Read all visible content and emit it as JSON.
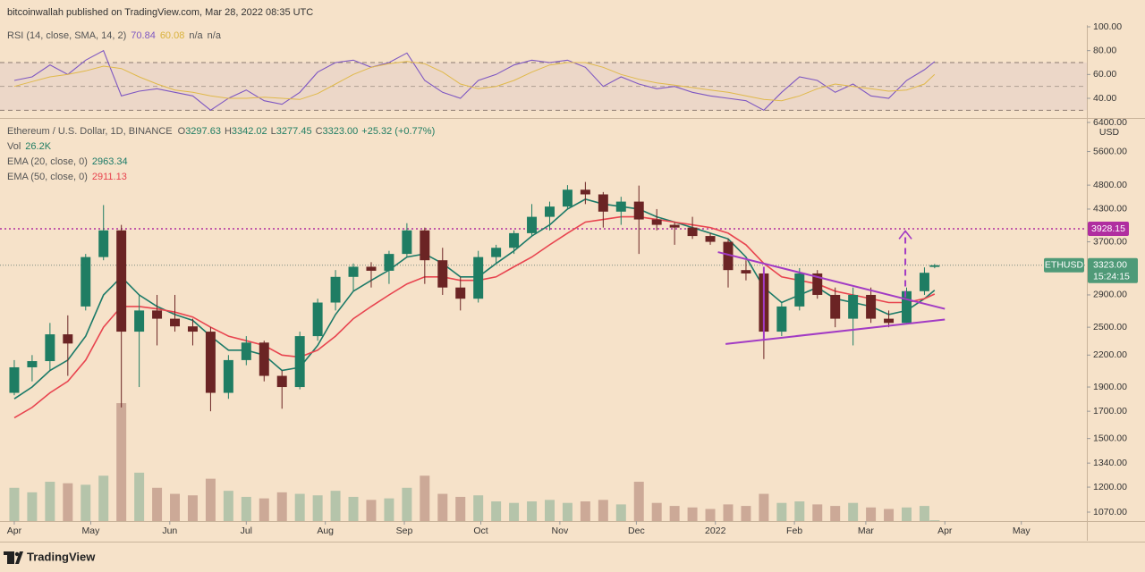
{
  "header": {
    "text": "bitcoinwallah published on TradingView.com, Mar 28, 2022 08:35 UTC"
  },
  "footer": {
    "logo_text": "TradingView"
  },
  "chart_data": [
    {
      "type": "line",
      "title": "RSI (14, close, SMA, 14, 2)",
      "legend_values": [
        {
          "text": "70.84",
          "color": "#7e57c2"
        },
        {
          "text": "60.08",
          "color": "#d9b23c"
        },
        {
          "text": "n/a",
          "color": "#555555"
        },
        {
          "text": "n/a",
          "color": "#555555"
        }
      ],
      "x": [
        0,
        7,
        14,
        21,
        28,
        35,
        42,
        49,
        56,
        63,
        70,
        77,
        84,
        91,
        98,
        105,
        112,
        119,
        126,
        133,
        140,
        147,
        154,
        161,
        168,
        175,
        182,
        189,
        196,
        203,
        210,
        217,
        224,
        231,
        238,
        245,
        252,
        259,
        266,
        273,
        280,
        287,
        294,
        301,
        308,
        315,
        322,
        329,
        336,
        343,
        350,
        357,
        361
      ],
      "series": [
        {
          "color": "#7e57c2",
          "values": [
            55,
            58,
            68,
            60,
            72,
            80,
            42,
            46,
            48,
            45,
            42,
            30,
            40,
            47,
            38,
            35,
            45,
            62,
            70,
            72,
            66,
            70,
            78,
            55,
            45,
            40,
            55,
            60,
            68,
            72,
            70,
            72,
            66,
            50,
            58,
            52,
            48,
            50,
            45,
            42,
            40,
            38,
            30,
            45,
            58,
            55,
            45,
            52,
            42,
            40,
            55,
            64,
            70.84
          ]
        },
        {
          "color": "#e0b94a",
          "values": [
            50,
            54,
            58,
            60,
            63,
            67,
            65,
            58,
            52,
            47,
            45,
            42,
            40,
            40,
            41,
            40,
            39,
            44,
            52,
            60,
            66,
            69,
            71,
            69,
            62,
            52,
            48,
            50,
            55,
            62,
            68,
            70,
            70,
            66,
            60,
            56,
            53,
            51,
            49,
            47,
            45,
            42,
            39,
            38,
            42,
            48,
            52,
            50,
            48,
            46,
            47,
            52,
            60.08
          ]
        }
      ],
      "band": [
        30,
        70
      ],
      "midline": 50,
      "band_color": "#7e57c2",
      "xlim": [
        -5.6,
        420.7
      ],
      "ylim": [
        23.5,
        101.5
      ],
      "yticks": [
        {
          "value": 100,
          "label": "100.00"
        },
        {
          "value": 80,
          "label": "80.00"
        },
        {
          "value": 60,
          "label": "60.00"
        },
        {
          "value": 40,
          "label": "40.00"
        }
      ]
    },
    {
      "type": "candlestick",
      "title": "Ethereum / U.S. Dollar, 1D, BINANCE",
      "ohlc_legend": [
        {
          "key": "O",
          "value": "3297.63"
        },
        {
          "key": "H",
          "value": "3342.02"
        },
        {
          "key": "L",
          "value": "3277.45"
        },
        {
          "key": "C",
          "value": "3323.00"
        }
      ],
      "change": "+25.32 (+0.77%)",
      "up_color": "#1f7d63",
      "down_color": "#6b2424",
      "x": [
        0,
        7,
        14,
        21,
        28,
        35,
        42,
        49,
        56,
        63,
        70,
        77,
        84,
        91,
        98,
        105,
        112,
        119,
        126,
        133,
        140,
        147,
        154,
        161,
        168,
        175,
        182,
        189,
        196,
        203,
        210,
        217,
        224,
        231,
        238,
        245,
        252,
        259,
        266,
        273,
        280,
        287,
        294,
        301,
        308,
        315,
        322,
        329,
        336,
        343,
        350,
        357,
        361
      ],
      "open": [
        1850,
        2080,
        2140,
        2420,
        2750,
        3450,
        3900,
        2450,
        2700,
        2600,
        2510,
        2450,
        1850,
        2150,
        2330,
        2000,
        1900,
        2400,
        2800,
        3150,
        3300,
        3240,
        3500,
        3900,
        3400,
        3000,
        2850,
        3450,
        3600,
        3850,
        4150,
        4350,
        4700,
        4600,
        4250,
        4450,
        4100,
        4000,
        3950,
        3800,
        3700,
        3250,
        3200,
        2450,
        2750,
        3200,
        2900,
        2600,
        2900,
        2600,
        2550,
        2950,
        3297.63
      ],
      "high": [
        2150,
        2200,
        2550,
        2640,
        3500,
        4380,
        4000,
        2900,
        2900,
        2900,
        2600,
        2500,
        2200,
        2400,
        2350,
        2050,
        2450,
        2850,
        3250,
        3350,
        3370,
        3550,
        4030,
        3950,
        3600,
        3150,
        3550,
        3650,
        3900,
        4400,
        4450,
        4800,
        4870,
        4650,
        4550,
        4790,
        4300,
        4050,
        4150,
        3850,
        3750,
        3400,
        3250,
        2800,
        3280,
        3250,
        3000,
        3000,
        3000,
        2700,
        3000,
        3290,
        3342.02
      ],
      "low": [
        1830,
        1950,
        2050,
        2000,
        2700,
        3400,
        1730,
        1900,
        2300,
        2450,
        2300,
        1700,
        1800,
        2100,
        1950,
        1720,
        1880,
        2350,
        2700,
        2950,
        3000,
        3050,
        3450,
        3050,
        2900,
        2700,
        2800,
        3350,
        3500,
        3800,
        3900,
        4300,
        4400,
        3950,
        4000,
        3500,
        3900,
        3650,
        3750,
        3650,
        3000,
        3100,
        2160,
        2400,
        2700,
        2850,
        2500,
        2300,
        2550,
        2500,
        2550,
        2900,
        3277.45
      ],
      "close": [
        2080,
        2140,
        2420,
        2320,
        3450,
        3900,
        2450,
        2700,
        2600,
        2510,
        2450,
        1850,
        2150,
        2330,
        2000,
        1900,
        2400,
        2800,
        3150,
        3300,
        3240,
        3500,
        3900,
        3400,
        3000,
        2850,
        3450,
        3600,
        3850,
        4150,
        4350,
        4700,
        4600,
        4250,
        4450,
        4100,
        4000,
        3950,
        3800,
        3700,
        3250,
        3200,
        2450,
        2750,
        3200,
        2900,
        2600,
        2900,
        2600,
        2550,
        2950,
        3210,
        3323
      ],
      "volume": {
        "name": "Vol",
        "last": "26.2K",
        "color": "#1f7d63",
        "values": [
          1100000,
          950000,
          1300000,
          1250000,
          1200000,
          1500000,
          3900000,
          1600000,
          1100000,
          900000,
          850000,
          1400000,
          1000000,
          800000,
          750000,
          950000,
          900000,
          850000,
          1000000,
          800000,
          700000,
          750000,
          1100000,
          1500000,
          900000,
          800000,
          850000,
          650000,
          600000,
          650000,
          700000,
          600000,
          650000,
          700000,
          550000,
          1300000,
          600000,
          500000,
          450000,
          400000,
          550000,
          500000,
          900000,
          600000,
          650000,
          550000,
          500000,
          600000,
          450000,
          400000,
          450000,
          500000,
          26200
        ],
        "ylim": [
          0,
          13300000
        ]
      },
      "series": [
        {
          "name": "EMA (20, close, 0)",
          "last": "2963.34",
          "color": "#1b7a68",
          "values": [
            1800,
            1900,
            2050,
            2150,
            2400,
            2900,
            3150,
            2900,
            2750,
            2650,
            2580,
            2400,
            2250,
            2250,
            2200,
            2050,
            2080,
            2300,
            2650,
            2950,
            3100,
            3250,
            3450,
            3500,
            3350,
            3150,
            3150,
            3350,
            3550,
            3800,
            4000,
            4300,
            4500,
            4400,
            4350,
            4300,
            4150,
            4050,
            3950,
            3850,
            3750,
            3450,
            3000,
            2800,
            2900,
            3000,
            2850,
            2800,
            2750,
            2650,
            2700,
            2850,
            2963.34
          ]
        },
        {
          "name": "EMA (50, close, 0)",
          "last": "2911.13",
          "color": "#e8444f",
          "values": [
            1650,
            1730,
            1850,
            1950,
            2150,
            2500,
            2750,
            2750,
            2720,
            2680,
            2620,
            2500,
            2400,
            2350,
            2300,
            2200,
            2180,
            2250,
            2400,
            2600,
            2750,
            2900,
            3050,
            3150,
            3150,
            3100,
            3100,
            3150,
            3300,
            3450,
            3650,
            3850,
            4050,
            4100,
            4150,
            4150,
            4100,
            4050,
            4000,
            3950,
            3850,
            3650,
            3350,
            3150,
            3100,
            3050,
            2950,
            2900,
            2850,
            2800,
            2800,
            2850,
            2911.13
          ]
        }
      ],
      "log_scale": true,
      "xlim": [
        -5.6,
        420.7
      ],
      "ylim": [
        1027,
        6506
      ],
      "y_unit": "USD",
      "yticks": [
        {
          "value": 6400,
          "label": "6400.00"
        },
        {
          "value": 5600,
          "label": "5600.00"
        },
        {
          "value": 4800,
          "label": "4800.00"
        },
        {
          "value": 4300,
          "label": "4300.00"
        },
        {
          "value": 3700,
          "label": "3700.00"
        },
        {
          "value": 2900,
          "label": "2900.00"
        },
        {
          "value": 2500,
          "label": "2500.00"
        },
        {
          "value": 2200,
          "label": "2200.00"
        },
        {
          "value": 1900,
          "label": "1900.00"
        },
        {
          "value": 1700,
          "label": "1700.00"
        },
        {
          "value": 1500,
          "label": "1500.00"
        },
        {
          "value": 1340,
          "label": "1340.00"
        },
        {
          "value": 1200,
          "label": "1200.00"
        },
        {
          "value": 1070,
          "label": "1070.00"
        }
      ],
      "xticks": [
        {
          "value": 0,
          "label": "Apr"
        },
        {
          "value": 30,
          "label": "May"
        },
        {
          "value": 61,
          "label": "Jun"
        },
        {
          "value": 91,
          "label": "Jul"
        },
        {
          "value": 122,
          "label": "Aug"
        },
        {
          "value": 153,
          "label": "Sep"
        },
        {
          "value": 183,
          "label": "Oct"
        },
        {
          "value": 214,
          "label": "Nov"
        },
        {
          "value": 244,
          "label": "Dec"
        },
        {
          "value": 275,
          "label": "2022"
        },
        {
          "value": 306,
          "label": "Feb"
        },
        {
          "value": 334,
          "label": "Mar"
        },
        {
          "value": 365,
          "label": "Apr"
        },
        {
          "value": 395,
          "label": "May"
        }
      ],
      "levels": [
        {
          "value": 3928.15,
          "color": "#b02ea0"
        }
      ],
      "price_line": {
        "value": 3323,
        "label": "3323.00",
        "symbol": "ETHUSD",
        "countdown": "15:24:15",
        "color": "#4f9a78"
      },
      "drawings": [
        {
          "x": [
            276,
            365
          ],
          "y": [
            3530,
            2720
          ],
          "color": "#a23bc4",
          "style": "solid"
        },
        {
          "x": [
            279,
            365
          ],
          "y": [
            2315,
            2590
          ],
          "color": "#a23bc4",
          "style": "solid"
        },
        {
          "x": [
            294,
            294
          ],
          "y": [
            3300,
            2350
          ],
          "color": "#a23bc4",
          "style": "solid"
        },
        {
          "x": [
            349.5,
            349.5
          ],
          "y": [
            2870,
            3890
          ],
          "color": "#a23bc4",
          "style": "dashed"
        }
      ]
    }
  ]
}
